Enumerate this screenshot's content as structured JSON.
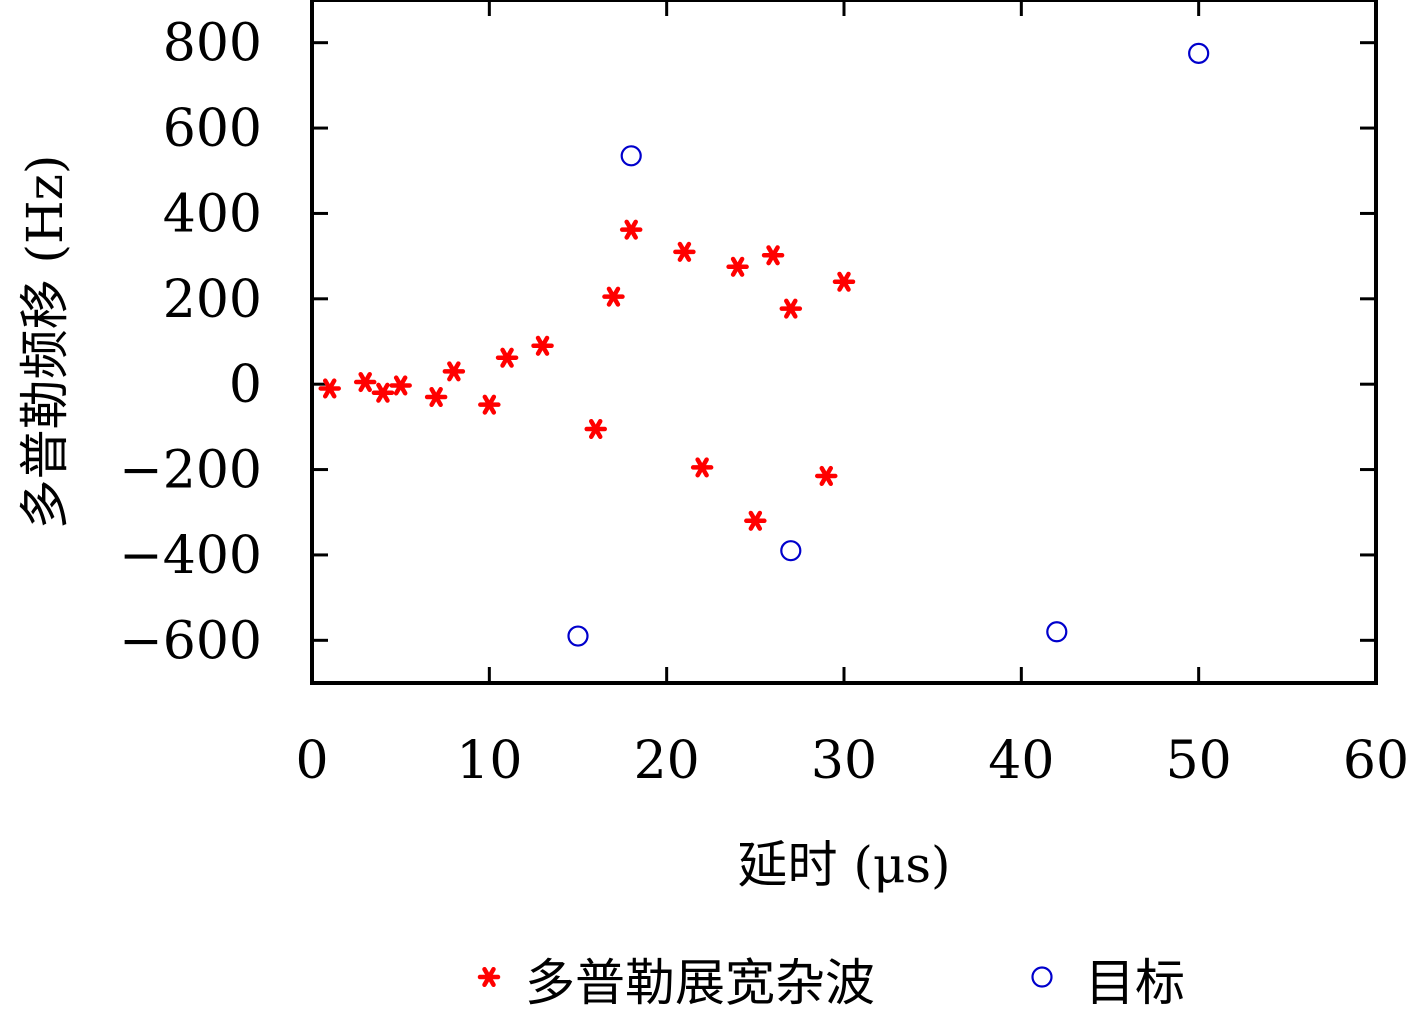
{
  "chart_data": {
    "type": "scatter",
    "xlabel": "延时 (μs)",
    "ylabel": "多普勒频移 (Hz)",
    "xlim": [
      0,
      60
    ],
    "ylim": [
      -700,
      900
    ],
    "xticks": [
      0,
      10,
      20,
      30,
      40,
      50,
      60
    ],
    "yticks": [
      800,
      600,
      400,
      200,
      0,
      -200,
      -400,
      -600
    ],
    "ytick_labels": [
      "800",
      "600",
      "400",
      "200",
      "0",
      "−200",
      "−400",
      "−600"
    ],
    "grid": false,
    "legend_position": "bottom",
    "series": [
      {
        "name": "多普勒展宽杂波",
        "marker": "asterisk",
        "color": "#ff0000",
        "points": [
          {
            "x": 1,
            "y": -10
          },
          {
            "x": 3,
            "y": 5
          },
          {
            "x": 4,
            "y": -20
          },
          {
            "x": 5,
            "y": -3
          },
          {
            "x": 7,
            "y": -30
          },
          {
            "x": 8,
            "y": 30
          },
          {
            "x": 10,
            "y": -48
          },
          {
            "x": 11,
            "y": 62
          },
          {
            "x": 13,
            "y": 90
          },
          {
            "x": 16,
            "y": -105
          },
          {
            "x": 17,
            "y": 205
          },
          {
            "x": 18,
            "y": 362
          },
          {
            "x": 21,
            "y": 310
          },
          {
            "x": 22,
            "y": -195
          },
          {
            "x": 24,
            "y": 275
          },
          {
            "x": 25,
            "y": -320
          },
          {
            "x": 26,
            "y": 302
          },
          {
            "x": 27,
            "y": 177
          },
          {
            "x": 29,
            "y": -215
          },
          {
            "x": 30,
            "y": 240
          }
        ]
      },
      {
        "name": "目标",
        "marker": "circle",
        "color": "#0000cc",
        "points": [
          {
            "x": 15,
            "y": -590
          },
          {
            "x": 18,
            "y": 535
          },
          {
            "x": 27,
            "y": -390
          },
          {
            "x": 42,
            "y": -580
          },
          {
            "x": 50,
            "y": 775
          }
        ]
      }
    ]
  }
}
